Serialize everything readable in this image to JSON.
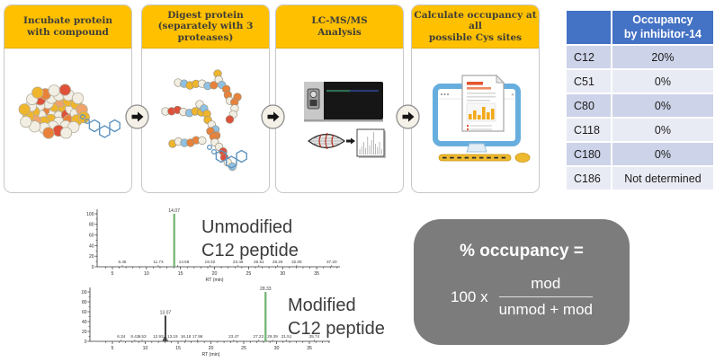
{
  "workflow": {
    "header_color": "#FFC000",
    "arrow_icon": "right-arrow",
    "steps": [
      {
        "title": "Incubate protein\nwith compound",
        "illustration": "protein-with-compound"
      },
      {
        "title": "Digest protein\n(separately with 3\nproteases)",
        "illustration": "peptide-fragments"
      },
      {
        "title": "LC-MS/MS\nAnalysis",
        "illustration": "mass-spectrometer"
      },
      {
        "title": "Calculate occupancy at all\npossible Cys sites",
        "illustration": "computer-analysis"
      }
    ]
  },
  "occupancy_table": {
    "header": {
      "col1": "",
      "col2": "Occupancy\nby inhibitor-14"
    },
    "header_bg": "#4472C4",
    "band_colors": [
      "#CDD3E8",
      "#E9EBF4"
    ],
    "rows": [
      {
        "site": "C12",
        "value": "20%"
      },
      {
        "site": "C51",
        "value": "0%"
      },
      {
        "site": "C80",
        "value": "0%"
      },
      {
        "site": "C118",
        "value": "0%"
      },
      {
        "site": "C180",
        "value": "0%"
      },
      {
        "site": "C186",
        "value": "Not determined"
      }
    ]
  },
  "chart_data": [
    {
      "type": "line",
      "subtype": "chromatogram",
      "title": "Unmodified\nC12 peptide",
      "xlabel": "RT (min)",
      "xlim": [
        3,
        38.5
      ],
      "ylim": [
        0,
        100
      ],
      "x_ticks": [
        5,
        10,
        15,
        20,
        25,
        30,
        35
      ],
      "y_ticks": [
        0,
        20,
        40,
        60,
        80,
        100
      ],
      "grid": false,
      "peaks": [
        {
          "rt": 14.07,
          "intensity": 100,
          "label": "14.07",
          "color": "#4AA14A"
        }
      ],
      "minor_peaks": [
        {
          "rt": 6.45,
          "label": "6.45"
        },
        {
          "rt": 11.73,
          "label": "11.73"
        },
        {
          "rt": 14.58,
          "label": "14.58"
        },
        {
          "rt": 19.32,
          "label": "19.32"
        },
        {
          "rt": 23.46,
          "label": "23.46"
        },
        {
          "rt": 26.51,
          "label": "26.51"
        },
        {
          "rt": 29.26,
          "label": "29.26"
        },
        {
          "rt": 32.06,
          "label": "32.06"
        },
        {
          "rt": 37.2,
          "label": "37.20"
        }
      ]
    },
    {
      "type": "line",
      "subtype": "chromatogram",
      "title": "Modified\nC12 peptide",
      "xlabel": "RT (min)",
      "xlim": [
        3,
        38.5
      ],
      "ylim": [
        0,
        100
      ],
      "x_ticks": [
        5,
        10,
        15,
        20,
        25,
        30,
        35
      ],
      "y_ticks": [
        0,
        20,
        40,
        60,
        80,
        100
      ],
      "grid": false,
      "peaks": [
        {
          "rt": 13.07,
          "intensity": 52,
          "label": "13.07",
          "color": "#222222"
        },
        {
          "rt": 28.33,
          "intensity": 100,
          "label": "28.33",
          "color": "#4AA14A"
        }
      ],
      "noise": [
        {
          "rt": 12.72,
          "intensity": 5
        },
        {
          "rt": 12.9,
          "intensity": 9
        },
        {
          "rt": 13.22,
          "intensity": 7
        },
        {
          "rt": 13.38,
          "intensity": 3
        }
      ],
      "minor_peaks": [
        {
          "rt": 6.34,
          "label": "6.34"
        },
        {
          "rt": 8.41,
          "label": "8.41"
        },
        {
          "rt": 9.53,
          "label": "9.53"
        },
        {
          "rt": 12.93,
          "label": "12.93"
        },
        {
          "rt": 13.19,
          "label": "13.19"
        },
        {
          "rt": 16.18,
          "label": "16.18"
        },
        {
          "rt": 17.96,
          "label": "17.96"
        },
        {
          "rt": 23.47,
          "label": "23.47"
        },
        {
          "rt": 27.23,
          "label": "27.23"
        },
        {
          "rt": 29.39,
          "label": "29.39"
        },
        {
          "rt": 31.51,
          "label": "31.51"
        },
        {
          "rt": 35.74,
          "label": "35.74"
        }
      ]
    }
  ],
  "formula": {
    "bg": "#7C7C7C",
    "title": "% occupancy =",
    "prefix": "100 x",
    "numerator": "mod",
    "denominator": "unmod + mod"
  }
}
